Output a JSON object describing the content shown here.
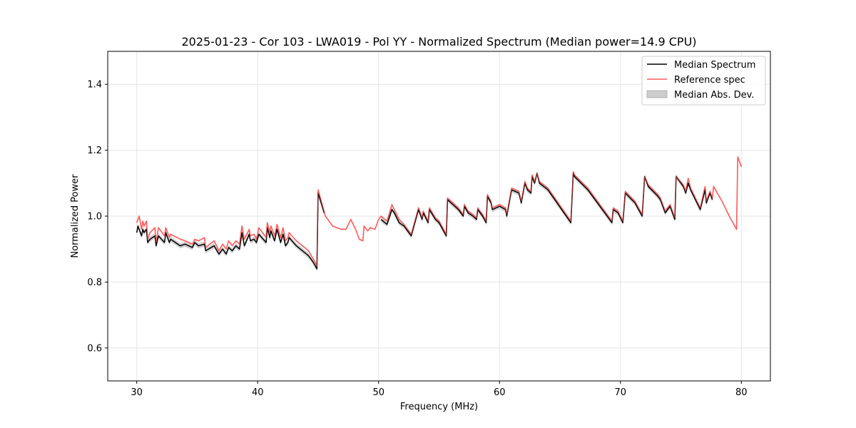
{
  "chart_data": {
    "type": "line",
    "title": "2025-01-23 - Cor 103 - LWA019 - Pol YY - Normalized Spectrum (Median power=14.9 CPU)",
    "xlabel": "Frequency (MHz)",
    "ylabel": "Normalized Power",
    "xlim": [
      27.6,
      82.4
    ],
    "ylim": [
      0.5,
      1.5
    ],
    "xticks": [
      30,
      40,
      50,
      60,
      70,
      80
    ],
    "yticks": [
      0.6,
      0.8,
      1.0,
      1.2,
      1.4
    ],
    "xtick_labels": [
      "30",
      "40",
      "50",
      "60",
      "70",
      "80"
    ],
    "ytick_labels": [
      "0.6",
      "0.8",
      "1.0",
      "1.2",
      "1.4"
    ],
    "grid": true,
    "legend_position": "top-right",
    "legend": [
      "Median Spectrum",
      "Reference spec",
      "Median Abs. Dev."
    ],
    "colors": {
      "median": "#000000",
      "reference": "#ff5b5b",
      "mad": "#aaaaaa",
      "grid": "#e6e6e6"
    },
    "series": [
      {
        "name": "Median Spectrum",
        "x": [
          30.0,
          30.1,
          30.4,
          30.5,
          30.6,
          30.8,
          30.9,
          31.1,
          31.5,
          31.6,
          31.8,
          32.3,
          32.4,
          32.7,
          32.8,
          33.6,
          34.0,
          34.6,
          34.8,
          35.1,
          35.6,
          35.7,
          36.4,
          36.8,
          37.1,
          37.4,
          37.6,
          37.9,
          38.2,
          38.5,
          38.7,
          38.9,
          39.3,
          39.4,
          39.7,
          39.9,
          40.1,
          40.7,
          40.8,
          41.0,
          41.1,
          41.4,
          41.6,
          41.9,
          42.1,
          42.3,
          42.5,
          42.6,
          43.2,
          44.2,
          44.6,
          44.9,
          45.0,
          45.5,
          50.2,
          50.7,
          51.1,
          51.3,
          51.7,
          52.1,
          52.7,
          53.3,
          53.6,
          53.7,
          54.1,
          54.2,
          54.7,
          55.0,
          55.6,
          55.7,
          56.3,
          56.6,
          57.0,
          57.1,
          57.4,
          57.8,
          58.1,
          58.2,
          58.6,
          58.9,
          59.0,
          59.3,
          59.4,
          60.0,
          60.5,
          60.6,
          61.0,
          61.6,
          61.8,
          62.1,
          62.3,
          62.6,
          62.7,
          62.9,
          63.1,
          63.3,
          64.0,
          65.9,
          66.1,
          66.2,
          67.3,
          68.5,
          69.3,
          69.4,
          69.8,
          70.2,
          70.4,
          71.2,
          71.8,
          72.0,
          72.3,
          73.1,
          73.3,
          73.7,
          74.1,
          74.5,
          74.6,
          75.2,
          75.4,
          75.6,
          75.8,
          76.2,
          76.6,
          77.0,
          77.1,
          77.4,
          77.6
        ],
        "y": [
          0.95,
          0.97,
          0.94,
          0.96,
          0.95,
          0.96,
          0.92,
          0.93,
          0.94,
          0.91,
          0.94,
          0.92,
          0.95,
          0.92,
          0.93,
          0.91,
          0.915,
          0.905,
          0.92,
          0.91,
          0.915,
          0.895,
          0.91,
          0.885,
          0.9,
          0.885,
          0.905,
          0.895,
          0.91,
          0.9,
          0.95,
          0.91,
          0.945,
          0.925,
          0.93,
          0.92,
          0.945,
          0.92,
          0.965,
          0.935,
          0.955,
          0.925,
          0.96,
          0.92,
          0.945,
          0.91,
          0.92,
          0.935,
          0.91,
          0.88,
          0.86,
          0.84,
          1.07,
          1.01,
          0.99,
          0.975,
          1.02,
          1.01,
          0.98,
          0.97,
          0.94,
          1.02,
          0.99,
          1.01,
          0.98,
          1.02,
          0.99,
          0.98,
          0.94,
          1.05,
          1.03,
          1.02,
          1.0,
          1.03,
          1.01,
          1.0,
          0.99,
          1.02,
          1.0,
          0.98,
          1.06,
          1.04,
          1.02,
          1.03,
          1.02,
          1.0,
          1.08,
          1.07,
          1.04,
          1.1,
          1.08,
          1.07,
          1.12,
          1.1,
          1.13,
          1.1,
          1.08,
          0.98,
          1.13,
          1.12,
          1.08,
          1.02,
          0.98,
          1.02,
          1.01,
          0.98,
          1.07,
          1.04,
          1.0,
          1.12,
          1.09,
          1.06,
          1.05,
          1.01,
          1.03,
          0.99,
          1.12,
          1.09,
          1.07,
          1.1,
          1.08,
          1.05,
          1.02,
          1.08,
          1.04,
          1.07,
          1.05
        ]
      },
      {
        "name": "Reference spec",
        "x": [
          30.0,
          30.2,
          30.4,
          30.5,
          30.6,
          30.8,
          30.9,
          31.1,
          31.5,
          31.6,
          31.8,
          32.3,
          32.4,
          32.7,
          32.8,
          33.6,
          34.0,
          34.6,
          34.8,
          35.1,
          35.6,
          35.7,
          36.4,
          36.8,
          37.1,
          37.4,
          37.6,
          37.9,
          38.2,
          38.5,
          38.7,
          38.9,
          39.3,
          39.4,
          39.7,
          39.9,
          40.1,
          40.7,
          40.8,
          41.0,
          41.1,
          41.4,
          41.6,
          41.9,
          42.1,
          42.3,
          42.5,
          42.6,
          43.2,
          44.2,
          44.6,
          44.9,
          45.0,
          45.6,
          46.2,
          46.9,
          47.3,
          47.7,
          48.1,
          48.4,
          48.7,
          48.8,
          49.1,
          49.3,
          49.7,
          50.0,
          50.2,
          50.7,
          51.1,
          51.3,
          51.7,
          52.1,
          52.7,
          53.3,
          53.6,
          53.7,
          54.1,
          54.2,
          54.7,
          55.0,
          55.6,
          55.7,
          56.3,
          56.6,
          57.0,
          57.1,
          57.4,
          57.8,
          58.1,
          58.2,
          58.6,
          58.9,
          59.0,
          59.3,
          59.4,
          60.0,
          60.5,
          60.6,
          61.0,
          61.6,
          61.8,
          62.1,
          62.3,
          62.6,
          62.7,
          62.9,
          63.1,
          63.3,
          64.0,
          65.9,
          66.1,
          66.2,
          67.3,
          68.5,
          69.3,
          69.4,
          69.8,
          70.2,
          70.4,
          71.2,
          71.8,
          72.0,
          72.3,
          73.1,
          73.3,
          73.7,
          74.1,
          74.5,
          74.6,
          75.2,
          75.4,
          75.6,
          75.8,
          76.2,
          76.6,
          77.0,
          77.1,
          77.4,
          77.6,
          77.7,
          78.4,
          79.0,
          79.6,
          79.7,
          80.0
        ],
        "y": [
          0.98,
          1.0,
          0.96,
          0.985,
          0.97,
          0.985,
          0.93,
          0.95,
          0.965,
          0.92,
          0.965,
          0.94,
          0.965,
          0.935,
          0.945,
          0.93,
          0.925,
          0.915,
          0.93,
          0.925,
          0.935,
          0.905,
          0.925,
          0.895,
          0.915,
          0.9,
          0.925,
          0.91,
          0.925,
          0.915,
          0.97,
          0.93,
          0.96,
          0.94,
          0.945,
          0.93,
          0.965,
          0.935,
          0.98,
          0.95,
          0.97,
          0.94,
          0.975,
          0.935,
          0.965,
          0.925,
          0.935,
          0.95,
          0.925,
          0.895,
          0.87,
          0.85,
          1.08,
          1.0,
          0.97,
          0.96,
          0.96,
          0.99,
          0.96,
          0.93,
          0.925,
          0.97,
          0.955,
          0.965,
          0.96,
          0.99,
          1.0,
          0.985,
          1.035,
          1.02,
          0.99,
          0.975,
          0.945,
          1.025,
          0.995,
          1.015,
          0.985,
          1.025,
          0.995,
          0.985,
          0.945,
          1.055,
          1.035,
          1.025,
          1.005,
          1.035,
          1.015,
          1.005,
          0.995,
          1.025,
          1.005,
          0.985,
          1.065,
          1.045,
          1.025,
          1.035,
          1.025,
          1.005,
          1.085,
          1.075,
          1.045,
          1.105,
          1.085,
          1.075,
          1.125,
          1.105,
          1.13,
          1.105,
          1.085,
          0.985,
          1.135,
          1.125,
          1.085,
          1.025,
          0.985,
          1.025,
          1.015,
          0.985,
          1.075,
          1.045,
          1.005,
          1.12,
          1.095,
          1.065,
          1.055,
          1.015,
          1.035,
          0.995,
          1.12,
          1.095,
          1.075,
          1.115,
          1.085,
          1.055,
          1.025,
          1.09,
          1.045,
          1.075,
          1.055,
          1.09,
          1.045,
          1.0,
          0.96,
          1.18,
          1.15
        ]
      }
    ]
  }
}
